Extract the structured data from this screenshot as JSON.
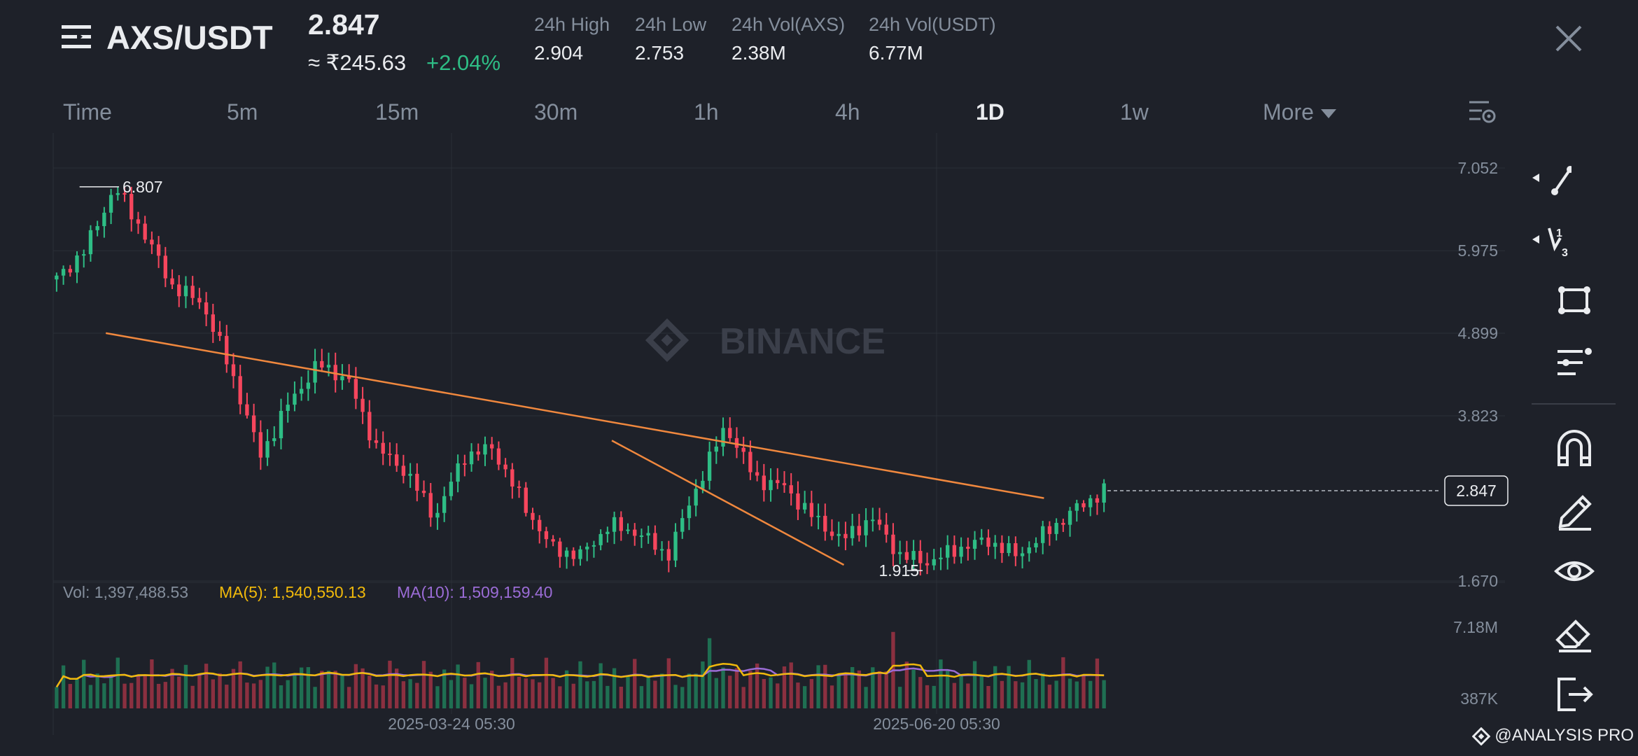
{
  "header": {
    "pair": "AXS/USDT",
    "last_price": "2.847",
    "inr_price": "≈ ₹245.63",
    "change": "+2.04%",
    "stats": [
      {
        "label": "24h High",
        "value": "2.904"
      },
      {
        "label": "24h Low",
        "value": "2.753"
      },
      {
        "label": "24h Vol(AXS)",
        "value": "2.38M"
      },
      {
        "label": "24h Vol(USDT)",
        "value": "6.77M"
      }
    ]
  },
  "timeframes": [
    "Time",
    "5m",
    "15m",
    "30m",
    "1h",
    "4h",
    "1D",
    "1w",
    "More"
  ],
  "active_timeframe": "1D",
  "icons": [
    "menu-icon",
    "close-icon",
    "chart-settings-icon",
    "trend-line-icon",
    "fib-icon",
    "rectangle-icon",
    "text-lines-icon",
    "magnet-icon",
    "pencil-icon",
    "eye-icon",
    "eraser-icon",
    "exit-icon",
    "binance-watermark-icon"
  ],
  "watermark": "BINANCE",
  "branding": "@ANALYSIS PRO",
  "colors": {
    "up": "#2ebd85",
    "down": "#f6465d",
    "trend": "#f0883e",
    "ma5": "#f0b90b",
    "ma10": "#9b6cd6",
    "background": "#1e2129"
  },
  "chart_data": {
    "type": "candlestick",
    "interval": "1D",
    "price_axis_ticks": [
      "7.052",
      "5.975",
      "4.899",
      "3.823",
      "2.847",
      "1.670"
    ],
    "price_range": [
      1.67,
      7.052
    ],
    "current_price": "2.847",
    "high_marker": "6.807",
    "low_marker": "1.915",
    "x_ticks": [
      "2025-03-24 05:30",
      "2025-06-20 05:30"
    ],
    "price_path_approx": [
      5.6,
      6.0,
      6.807,
      6.2,
      5.5,
      5.3,
      4.4,
      3.3,
      4.0,
      4.5,
      4.3,
      3.4,
      3.1,
      2.5,
      3.3,
      3.4,
      2.7,
      2.1,
      2.0,
      2.4,
      2.3,
      2.0,
      2.9,
      3.7,
      3.0,
      2.9,
      2.5,
      2.2,
      2.5,
      2.0,
      1.915,
      2.1,
      2.2,
      2.0,
      2.3,
      2.6,
      2.847
    ],
    "trend_lines": [
      {
        "name": "upper trendline",
        "from": [
          0.03,
          4.9
        ],
        "to": [
          0.9,
          2.75
        ]
      },
      {
        "name": "lower trendline",
        "from": [
          0.51,
          3.5
        ],
        "to": [
          0.75,
          1.88
        ]
      }
    ],
    "volume": {
      "legend": {
        "vol": "Vol: 1,397,488.53",
        "ma5": "MA(5): 1,540,550.13",
        "ma10": "MA(10): 1,509,159.40"
      },
      "axis_ticks": [
        "7.18M",
        "387K"
      ]
    }
  }
}
